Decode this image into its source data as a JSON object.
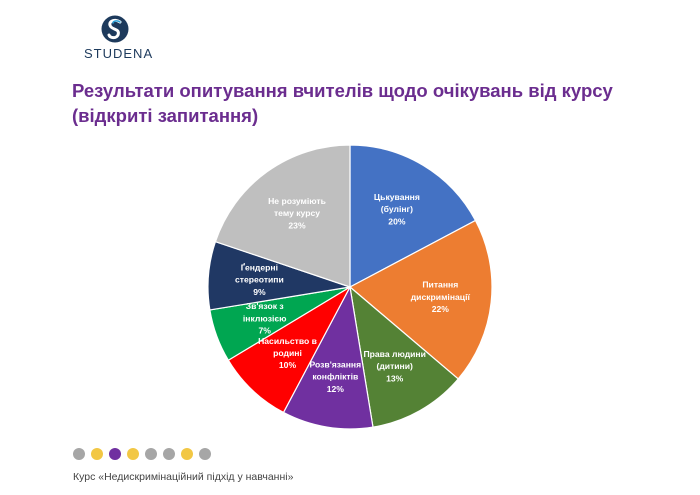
{
  "logo": {
    "text": "STUDENA",
    "color": "#1d3a5c",
    "accent": "#2a9fd6"
  },
  "title": {
    "line1": "Результати опитування вчителів щодо очікувань від курсу",
    "line2": "(відкриті запитання)"
  },
  "footer": {
    "text": "Курс «Недискримінаційний підхід у навчанні»"
  },
  "dots": [
    "#a6a6a6",
    "#f2c744",
    "#7030a0",
    "#f2c744",
    "#a6a6a6",
    "#a6a6a6",
    "#f2c744",
    "#a6a6a6"
  ],
  "chart_data": {
    "type": "pie",
    "title": "",
    "start": "12 o'clock, clockwise",
    "slices": [
      {
        "lines": [
          "Цькування",
          "(булінг)"
        ],
        "pct": "20%",
        "value": 20,
        "color": "#4472c4"
      },
      {
        "lines": [
          "Питання",
          "дискримінації"
        ],
        "pct": "22%",
        "value": 22,
        "color": "#ed7d31"
      },
      {
        "lines": [
          "Права людини",
          "(дитини)"
        ],
        "pct": "13%",
        "value": 13,
        "color": "#548235"
      },
      {
        "lines": [
          "Розв'язання",
          "конфліктів"
        ],
        "pct": "12%",
        "value": 12,
        "color": "#7030a0"
      },
      {
        "lines": [
          "Насильство в",
          "родині"
        ],
        "pct": "10%",
        "value": 10,
        "color": "#ff0000"
      },
      {
        "lines": [
          "Зв'язок з",
          "інклюзією"
        ],
        "pct": "7%",
        "value": 7,
        "color": "#00a651"
      },
      {
        "lines": [
          "Ґендерні",
          "стереотипи"
        ],
        "pct": "9%",
        "value": 9,
        "color": "#203864"
      },
      {
        "lines": [
          "Не розуміють",
          "тему курсу"
        ],
        "pct": "23%",
        "value": 23,
        "color": "#bfbfbf"
      }
    ]
  }
}
